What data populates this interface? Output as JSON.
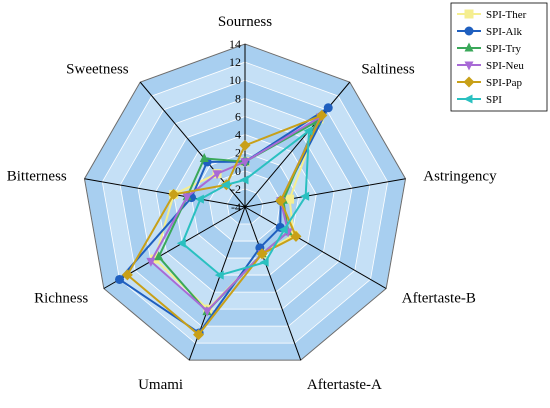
{
  "chart_data": {
    "type": "radar",
    "axes": [
      "Sourness",
      "Saltiness",
      "Astringency",
      "Aftertaste-B",
      "Aftertaste-A",
      "Umami",
      "Richness",
      "Bitterness",
      "Sweetness"
    ],
    "ticks": [
      -4,
      -2,
      0,
      2,
      4,
      6,
      8,
      10,
      12,
      14
    ],
    "rlim": [
      -4,
      14
    ],
    "legend_position": "top-right",
    "series": [
      {
        "name": "SPI-Ther",
        "color": "#f5ee90",
        "marker": "square",
        "values": [
          1.0,
          8.7,
          1.0,
          2.2,
          1.5,
          8.0,
          7.5,
          4.0,
          0.8
        ]
      },
      {
        "name": "SPI-Alk",
        "color": "#1f5fbf",
        "marker": "circle",
        "values": [
          1.0,
          10.3,
          0.0,
          0.5,
          0.8,
          10.8,
          12.0,
          2.0,
          2.5
        ]
      },
      {
        "name": "SPI-Try",
        "color": "#3aa85a",
        "marker": "triangle",
        "values": [
          1.0,
          8.3,
          0.3,
          1.5,
          1.5,
          8.3,
          7.0,
          2.5,
          3.0
        ]
      },
      {
        "name": "SPI-Neu",
        "color": "#a86ad6",
        "marker": "triangle-down",
        "values": [
          1.0,
          9.0,
          0.0,
          1.5,
          1.5,
          8.2,
          8.0,
          2.5,
          0.8
        ]
      },
      {
        "name": "SPI-Pap",
        "color": "#c8a018",
        "marker": "diamond",
        "values": [
          2.8,
          9.2,
          0.0,
          2.5,
          1.5,
          11.0,
          11.0,
          4.0,
          -0.8
        ]
      },
      {
        "name": "SPI",
        "color": "#2ac0c0",
        "marker": "triangle-left",
        "values": [
          -1.0,
          7.0,
          2.8,
          1.0,
          2.5,
          4.0,
          4.0,
          1.0,
          -0.8
        ]
      }
    ]
  }
}
